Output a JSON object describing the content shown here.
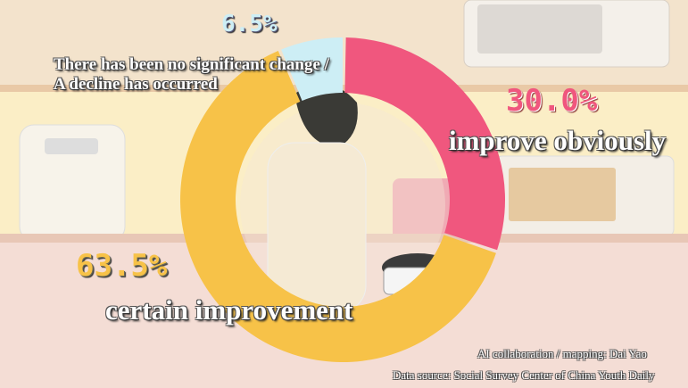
{
  "chart_data": {
    "type": "pie",
    "donut": true,
    "categories": [
      "improve obviously",
      "certain improvement",
      "There has been no significant change / A decline has occurred"
    ],
    "values": [
      30.0,
      63.5,
      6.5
    ],
    "value_labels": [
      "30.0%",
      "63.5%",
      "6.5%"
    ],
    "colors": [
      "#f0577e",
      "#f7c248",
      "#cdeef5"
    ],
    "title": ""
  },
  "labels": {
    "no_change_line1": "There has been no significant change /",
    "no_change_line2": "A decline has occurred"
  },
  "credits": {
    "author": "AI collaboration / mapping:  Dai Yao",
    "source": "Data source: Social Survey Center of China Youth Daily"
  }
}
